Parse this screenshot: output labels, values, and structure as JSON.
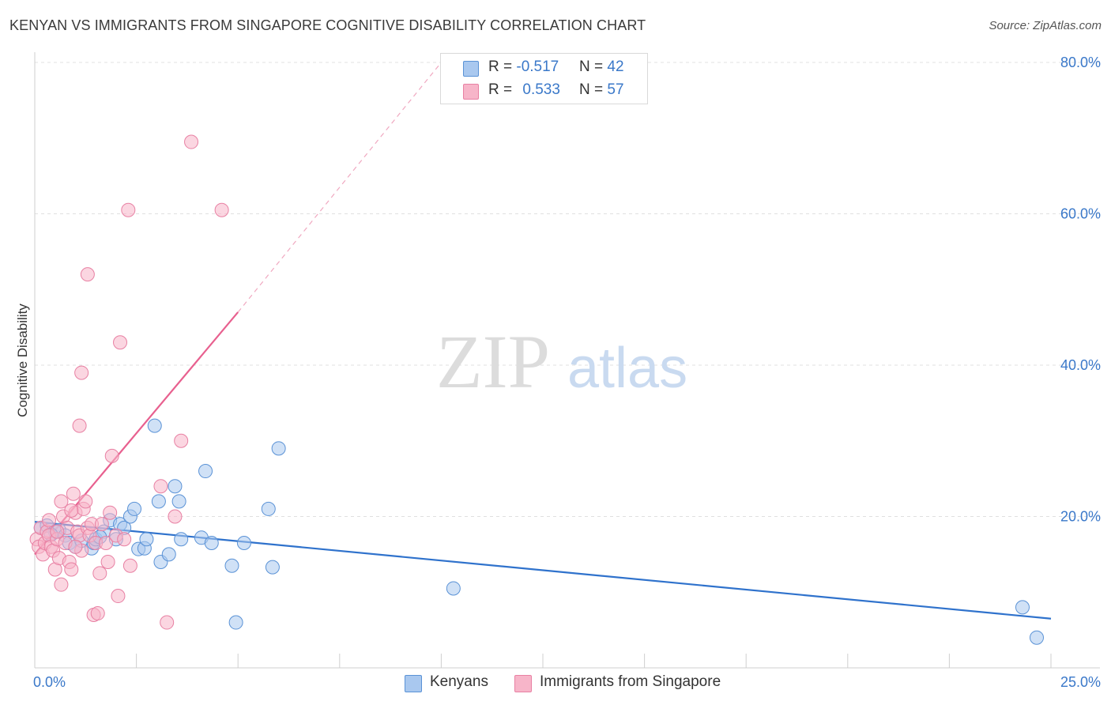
{
  "title": "KENYAN VS IMMIGRANTS FROM SINGAPORE COGNITIVE DISABILITY CORRELATION CHART",
  "source": "Source: ZipAtlas.com",
  "watermark": {
    "zip": "ZIP",
    "atlas": "atlas"
  },
  "legend_top": {
    "rows": [
      {
        "r_label": "R = ",
        "r_value": "-0.517",
        "n_label": "N = ",
        "n_value": "42",
        "color": "#a9c8ef"
      },
      {
        "r_label": "R = ",
        "r_value": "0.533",
        "n_label": "N = ",
        "n_value": "57",
        "color": "#f7b5c9"
      }
    ]
  },
  "legend_bottom": {
    "items": [
      {
        "label": "Kenyans",
        "color": "#a9c8ef"
      },
      {
        "label": "Immigrants from Singapore",
        "color": "#f7b5c9"
      }
    ]
  },
  "chart_data": {
    "type": "scatter",
    "title": "KENYAN VS IMMIGRANTS FROM SINGAPORE COGNITIVE DISABILITY CORRELATION CHART",
    "xlabel": "",
    "ylabel": "Cognitive Disability",
    "xlim": [
      0,
      25
    ],
    "ylim": [
      0,
      80
    ],
    "x_tick_labels": [
      "0.0%",
      "25.0%"
    ],
    "y_ticks": [
      20,
      40,
      60,
      80
    ],
    "y_tick_labels": [
      "20.0%",
      "40.0%",
      "60.0%",
      "80.0%"
    ],
    "grid": true,
    "legend_position": "top-center",
    "series": [
      {
        "name": "Kenyans",
        "color": "#a9c8ef",
        "stroke": "#5a92d6",
        "trend_color": "#2f72cc",
        "trend": {
          "x": [
            0,
            25
          ],
          "y": [
            19.3,
            6.5
          ],
          "dashed_to": null
        },
        "points": [
          [
            0.15,
            18.5
          ],
          [
            0.3,
            18.8
          ],
          [
            0.5,
            18.0
          ],
          [
            0.6,
            18.2
          ],
          [
            0.75,
            17.5
          ],
          [
            0.85,
            16.5
          ],
          [
            1.0,
            16.0
          ],
          [
            1.15,
            16.8
          ],
          [
            1.4,
            15.8
          ],
          [
            1.45,
            16.5
          ],
          [
            1.5,
            17.0
          ],
          [
            1.7,
            18.0
          ],
          [
            1.85,
            19.5
          ],
          [
            2.0,
            17.0
          ],
          [
            2.1,
            19.0
          ],
          [
            2.2,
            18.5
          ],
          [
            2.35,
            20.0
          ],
          [
            2.45,
            21.0
          ],
          [
            2.55,
            15.7
          ],
          [
            2.7,
            15.8
          ],
          [
            2.75,
            17.0
          ],
          [
            2.95,
            32.0
          ],
          [
            3.05,
            22.0
          ],
          [
            3.1,
            14.0
          ],
          [
            3.3,
            15.0
          ],
          [
            3.45,
            24.0
          ],
          [
            3.55,
            22.0
          ],
          [
            3.6,
            17.0
          ],
          [
            4.1,
            17.2
          ],
          [
            4.2,
            26.0
          ],
          [
            4.35,
            16.5
          ],
          [
            4.85,
            13.5
          ],
          [
            4.95,
            6.0
          ],
          [
            5.15,
            16.5
          ],
          [
            5.75,
            21.0
          ],
          [
            5.85,
            13.3
          ],
          [
            6.0,
            29.0
          ],
          [
            10.3,
            10.5
          ],
          [
            24.3,
            8.0
          ],
          [
            24.65,
            4.0
          ],
          [
            1.6,
            17.3
          ],
          [
            0.4,
            17.6
          ]
        ]
      },
      {
        "name": "Immigrants from Singapore",
        "color": "#f7b5c9",
        "stroke": "#e880a3",
        "trend_color": "#e8608f",
        "trend": {
          "x": [
            0,
            5.0
          ],
          "y": [
            15.0,
            47.0
          ],
          "dashed_to": [
            10.0,
            80.0
          ]
        },
        "points": [
          [
            0.05,
            17.0
          ],
          [
            0.1,
            16.0
          ],
          [
            0.15,
            18.5
          ],
          [
            0.2,
            15.0
          ],
          [
            0.25,
            16.5
          ],
          [
            0.3,
            18.0
          ],
          [
            0.35,
            17.5
          ],
          [
            0.4,
            16.0
          ],
          [
            0.45,
            15.5
          ],
          [
            0.5,
            13.0
          ],
          [
            0.55,
            17.0
          ],
          [
            0.6,
            14.5
          ],
          [
            0.65,
            11.0
          ],
          [
            0.7,
            20.0
          ],
          [
            0.75,
            16.5
          ],
          [
            0.8,
            18.5
          ],
          [
            0.85,
            14.0
          ],
          [
            0.9,
            13.0
          ],
          [
            0.95,
            23.0
          ],
          [
            1.0,
            20.5
          ],
          [
            1.05,
            18.0
          ],
          [
            1.1,
            17.5
          ],
          [
            1.15,
            15.5
          ],
          [
            1.2,
            21.0
          ],
          [
            1.25,
            22.0
          ],
          [
            1.3,
            18.5
          ],
          [
            1.35,
            17.5
          ],
          [
            1.4,
            19.0
          ],
          [
            1.45,
            7.0
          ],
          [
            1.5,
            16.5
          ],
          [
            1.55,
            7.2
          ],
          [
            1.6,
            12.5
          ],
          [
            1.65,
            19.0
          ],
          [
            1.75,
            16.5
          ],
          [
            1.8,
            14.0
          ],
          [
            1.85,
            20.5
          ],
          [
            1.9,
            28.0
          ],
          [
            2.0,
            17.5
          ],
          [
            2.05,
            9.5
          ],
          [
            2.1,
            43.0
          ],
          [
            2.2,
            17.0
          ],
          [
            2.35,
            13.5
          ],
          [
            0.65,
            22.0
          ],
          [
            1.1,
            32.0
          ],
          [
            1.15,
            39.0
          ],
          [
            1.3,
            52.0
          ],
          [
            2.3,
            60.5
          ],
          [
            3.1,
            24.0
          ],
          [
            3.25,
            6.0
          ],
          [
            3.45,
            20.0
          ],
          [
            3.6,
            30.0
          ],
          [
            3.85,
            69.5
          ],
          [
            4.6,
            60.5
          ],
          [
            0.9,
            20.8
          ],
          [
            1.0,
            16.0
          ],
          [
            0.35,
            19.5
          ],
          [
            0.55,
            18.0
          ]
        ]
      }
    ]
  }
}
